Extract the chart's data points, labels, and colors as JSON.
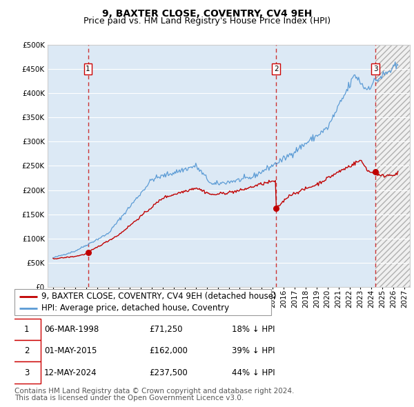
{
  "title": "9, BAXTER CLOSE, COVENTRY, CV4 9EH",
  "subtitle": "Price paid vs. HM Land Registry's House Price Index (HPI)",
  "hpi_label": "HPI: Average price, detached house, Coventry",
  "property_label": "9, BAXTER CLOSE, COVENTRY, CV4 9EH (detached house)",
  "footer1": "Contains HM Land Registry data © Crown copyright and database right 2024.",
  "footer2": "This data is licensed under the Open Government Licence v3.0.",
  "sales": [
    {
      "num": 1,
      "date_str": "06-MAR-1998",
      "date_x": 1998.18,
      "price": 71250,
      "pct": "18%",
      "dir": "↓"
    },
    {
      "num": 2,
      "date_str": "01-MAY-2015",
      "date_x": 2015.33,
      "price": 162000,
      "pct": "39%",
      "dir": "↓"
    },
    {
      "num": 3,
      "date_str": "12-MAY-2024",
      "date_x": 2024.36,
      "price": 237500,
      "pct": "44%",
      "dir": "↓"
    }
  ],
  "xlim": [
    1994.5,
    2027.5
  ],
  "ylim": [
    0,
    500000
  ],
  "yticks": [
    0,
    50000,
    100000,
    150000,
    200000,
    250000,
    300000,
    350000,
    400000,
    450000,
    500000
  ],
  "hpi_color": "#5b9bd5",
  "property_color": "#c00000",
  "vline_color": "#cc3333",
  "background_shaded": "#dce9f5",
  "grid_color": "#ffffff",
  "title_fontsize": 10,
  "subtitle_fontsize": 9,
  "tick_fontsize": 7.5,
  "legend_fontsize": 8.5,
  "table_fontsize": 8.5,
  "footer_fontsize": 7.5
}
